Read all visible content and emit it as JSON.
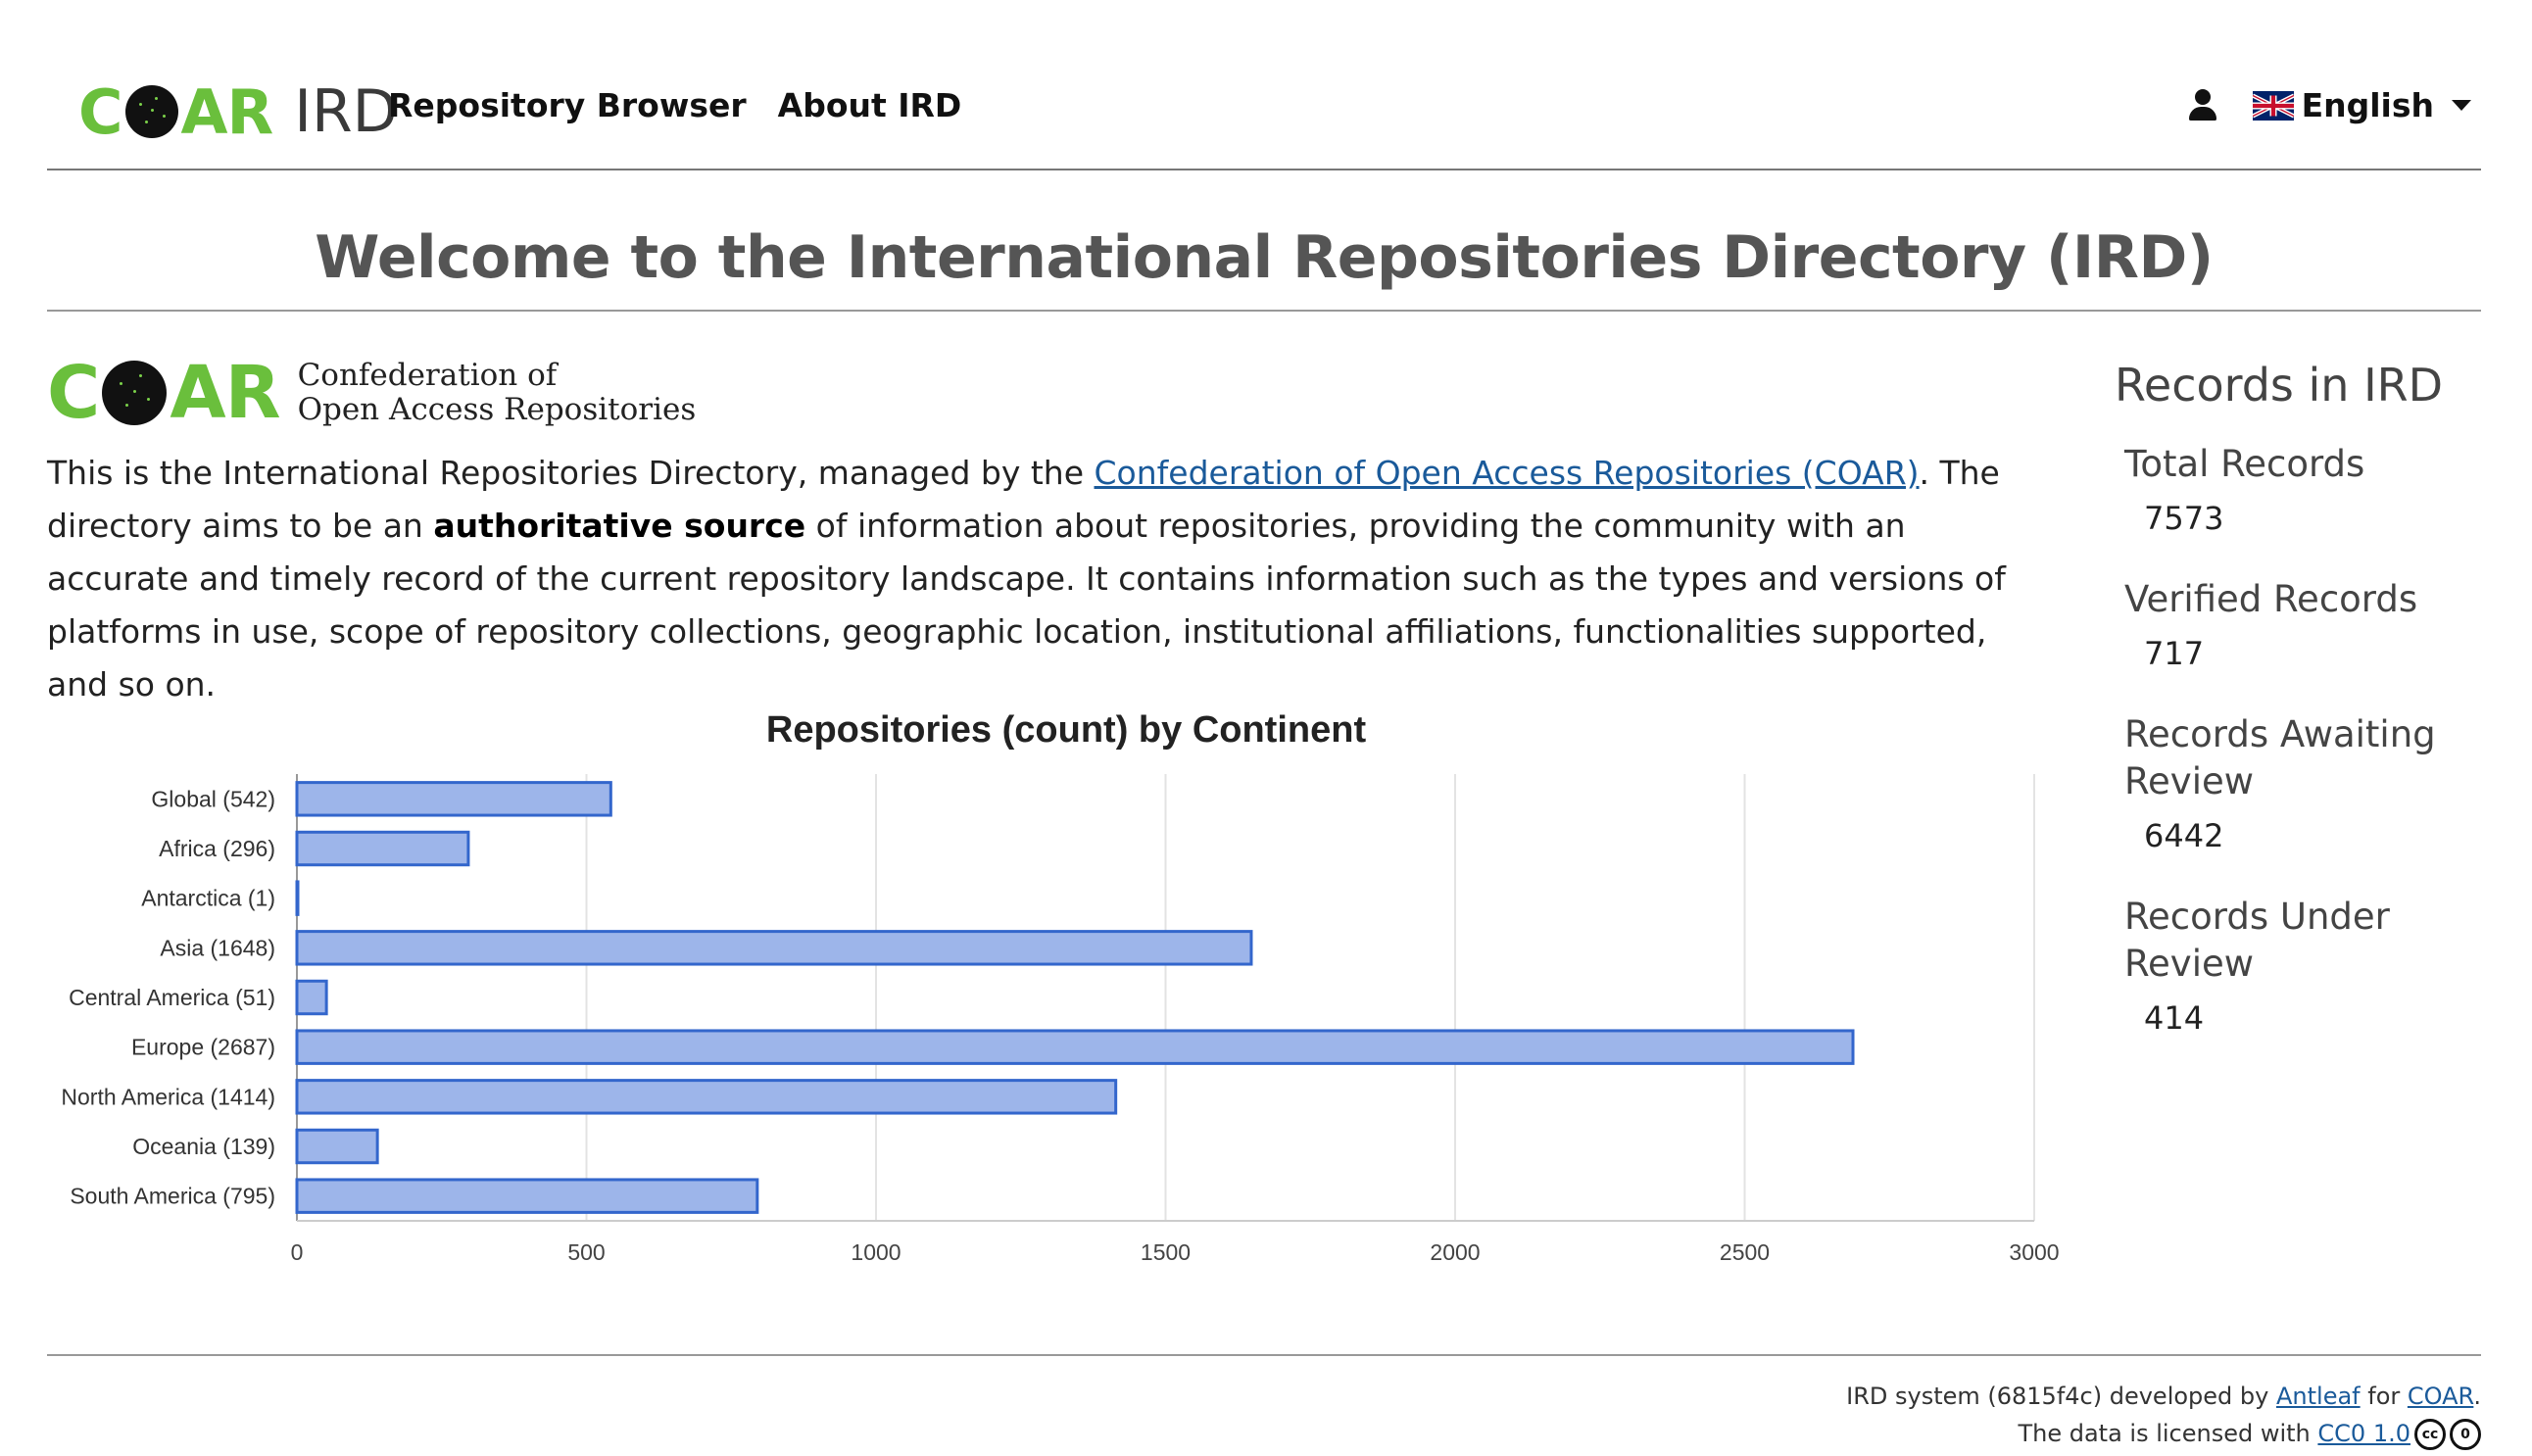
{
  "nav": {
    "logo_text_left": "C",
    "logo_text_right": "AR",
    "ird_text": "IRD",
    "links": [
      "Repository Browser",
      "About IRD"
    ],
    "language": "English",
    "icons": {
      "user": "user-icon",
      "flag": "uk-flag-icon",
      "dropdown": "chevron-down-icon"
    }
  },
  "page_title": "Welcome to the International Repositories Directory (IRD)",
  "intro_logo": {
    "left": "C",
    "right": "AR",
    "line1": "Confederation of",
    "line2": "Open Access Repositories"
  },
  "intro": {
    "p1": "This is the International Repositories Directory, managed by the ",
    "link": "Confederation of Open Access Repositories (COAR)",
    "p2": ". The directory aims to be an ",
    "bold": "authoritative source",
    "p3": " of information about repositories, providing the community with an accurate and timely record of the current repository landscape. It contains information such as the types and versions of platforms in use, scope of repository collections, geographic location, institutional affiliations, functionalities supported, and so on."
  },
  "stats": {
    "title": "Records in IRD",
    "items": [
      {
        "label": "Total Records",
        "value": "7573"
      },
      {
        "label": "Verified Records",
        "value": "717"
      },
      {
        "label": "Records Awaiting Review",
        "value": "6442"
      },
      {
        "label": "Records Under Review",
        "value": "414"
      }
    ]
  },
  "chart_data": {
    "type": "bar",
    "orientation": "horizontal",
    "title": "Repositories (count) by Continent",
    "categories": [
      "Global (542)",
      "Africa (296)",
      "Antarctica (1)",
      "Asia (1648)",
      "Central America (51)",
      "Europe (2687)",
      "North America (1414)",
      "Oceania (139)",
      "South America (795)"
    ],
    "values": [
      542,
      296,
      1,
      1648,
      51,
      2687,
      1414,
      139,
      795
    ],
    "xlim": [
      0,
      3000
    ],
    "xticks": [
      "0",
      "500",
      "1000",
      "1500",
      "2000",
      "2500",
      "3000"
    ],
    "grid": true,
    "colors": {
      "bar_fill": "#9db5ea",
      "bar_stroke": "#3366cc",
      "grid": "#e3e3e3"
    }
  },
  "footer": {
    "line1_pre": "IRD system (6815f4c) developed by ",
    "antleaf": "Antleaf",
    "line1_mid": " for ",
    "coar": "COAR",
    "line1_end": ".",
    "line2_pre": "The data is licensed with ",
    "license": "CC0 1.0",
    "cc_icon": "cc",
    "zero_icon": "0"
  }
}
